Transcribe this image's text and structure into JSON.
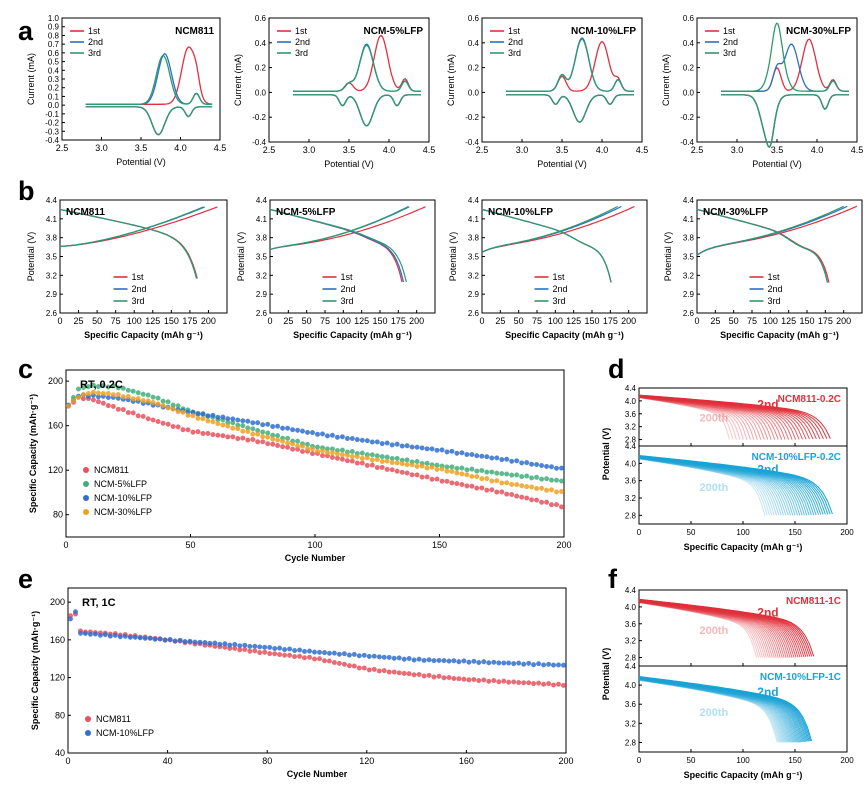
{
  "figure": {
    "panel_letters": [
      "a",
      "b",
      "c",
      "d",
      "e",
      "f"
    ],
    "colors": {
      "first": "#e0313f",
      "second": "#2a6fc9",
      "third": "#2e9a6e",
      "ncm811": "#e8505c",
      "ncm5": "#3fae7a",
      "ncm10": "#2f6fd0",
      "ncm30": "#f0a020",
      "d_red": "#e0303a",
      "d_blue": "#1aa3d6"
    }
  },
  "chart_data": [
    {
      "id": "a1",
      "type": "line",
      "title": "NCM811",
      "xlabel": "Potential (V)",
      "ylabel": "Current (mA)",
      "xlim": [
        2.5,
        4.5
      ],
      "ylim": [
        -0.4,
        1.0
      ],
      "xticks": [
        "2.5",
        "3.0",
        "3.5",
        "4.0",
        "4.5"
      ],
      "yticks": [
        "-0.4",
        "-0.3",
        "-0.2",
        "-0.1",
        "0.0",
        "0.1",
        "0.2",
        "0.3",
        "0.4",
        "0.5",
        "0.6",
        "0.7",
        "0.8",
        "0.9",
        "1.0"
      ],
      "legend": [
        "1st",
        "2nd",
        "3rd"
      ],
      "series": [
        {
          "name": "1st",
          "anodic_peak": [
            4.1,
            0.65
          ],
          "cathodic_peak": [
            3.72,
            -0.32
          ]
        },
        {
          "name": "2nd",
          "anodic_peak": [
            3.8,
            0.58
          ],
          "cathodic_peak": [
            3.72,
            -0.32
          ]
        },
        {
          "name": "3rd",
          "anodic_peak": [
            3.78,
            0.56
          ],
          "cathodic_peak": [
            3.72,
            -0.32
          ]
        }
      ]
    },
    {
      "id": "a2",
      "type": "line",
      "title": "NCM-5%LFP",
      "xlabel": "Potential (V)",
      "ylabel": "Current (mA)",
      "xlim": [
        2.5,
        4.5
      ],
      "ylim": [
        -0.4,
        0.6
      ],
      "xticks": [
        "2.5",
        "3.0",
        "3.5",
        "4.0",
        "4.5"
      ],
      "yticks": [
        "-0.4",
        "-0.2",
        "0.0",
        "0.2",
        "0.4",
        "0.6"
      ],
      "legend": [
        "1st",
        "2nd",
        "3rd"
      ],
      "series": [
        {
          "name": "1st",
          "anodic_peak": [
            3.9,
            0.45
          ],
          "cathodic_peak": [
            3.72,
            -0.25
          ]
        },
        {
          "name": "2nd",
          "anodic_peak": [
            3.72,
            0.38
          ],
          "cathodic_peak": [
            3.72,
            -0.25
          ]
        },
        {
          "name": "3rd",
          "anodic_peak": [
            3.72,
            0.37
          ],
          "cathodic_peak": [
            3.72,
            -0.25
          ]
        }
      ]
    },
    {
      "id": "a3",
      "type": "line",
      "title": "NCM-10%LFP",
      "xlabel": "Potential (V)",
      "ylabel": "Current (mA)",
      "xlim": [
        2.5,
        4.5
      ],
      "ylim": [
        -0.4,
        0.6
      ],
      "xticks": [
        "2.5",
        "3.0",
        "3.5",
        "4.0",
        "4.5"
      ],
      "yticks": [
        "-0.4",
        "-0.2",
        "0.0",
        "0.2",
        "0.4",
        "0.6"
      ],
      "legend": [
        "1st",
        "2nd",
        "3rd"
      ],
      "series": [
        {
          "name": "1st",
          "anodic_peak": [
            4.0,
            0.4
          ],
          "cathodic_peak": [
            3.72,
            -0.22
          ]
        },
        {
          "name": "2nd",
          "anodic_peak": [
            3.75,
            0.43
          ],
          "cathodic_peak": [
            3.72,
            -0.22
          ]
        },
        {
          "name": "3rd",
          "anodic_peak": [
            3.75,
            0.42
          ],
          "cathodic_peak": [
            3.72,
            -0.22
          ]
        }
      ]
    },
    {
      "id": "a4",
      "type": "line",
      "title": "NCM-30%LFP",
      "xlabel": "Potential (V)",
      "ylabel": "Current (mA)",
      "xlim": [
        2.5,
        4.5
      ],
      "ylim": [
        -0.4,
        0.6
      ],
      "xticks": [
        "2.5",
        "3.0",
        "3.5",
        "4.0",
        "4.5"
      ],
      "yticks": [
        "-0.4",
        "-0.2",
        "0.0",
        "0.2",
        "0.4",
        "0.6"
      ],
      "legend": [
        "1st",
        "2nd",
        "3rd"
      ],
      "series": [
        {
          "name": "1st",
          "anodic_peak": [
            3.9,
            0.42
          ],
          "cathodic_peak": [
            3.38,
            -0.33
          ]
        },
        {
          "name": "2nd",
          "anodic_peak": [
            3.68,
            0.38
          ],
          "cathodic_peak": [
            3.38,
            -0.33
          ]
        },
        {
          "name": "3rd",
          "anodic_peak": [
            3.5,
            0.38
          ],
          "cathodic_peak": [
            3.38,
            -0.33
          ]
        }
      ]
    },
    {
      "id": "b1",
      "type": "line",
      "title": "NCM811",
      "xlabel": "Specific Capacity (mAh g⁻¹)",
      "ylabel": "Potential (V)",
      "xlim": [
        0,
        225
      ],
      "ylim": [
        2.6,
        4.4
      ],
      "xticks": [
        "0",
        "25",
        "50",
        "75",
        "100",
        "125",
        "150",
        "175",
        "200"
      ],
      "yticks": [
        "2.6",
        "2.9",
        "3.2",
        "3.5",
        "3.8",
        "4.1",
        "4.4"
      ],
      "legend": [
        "1st",
        "2nd",
        "3rd"
      ],
      "series": [
        {
          "name": "1st",
          "charge_capacity": 212,
          "discharge_capacity": 185
        },
        {
          "name": "2nd",
          "charge_capacity": 195,
          "discharge_capacity": 184
        },
        {
          "name": "3rd",
          "charge_capacity": 193,
          "discharge_capacity": 184
        }
      ]
    },
    {
      "id": "b2",
      "type": "line",
      "title": "NCM-5%LFP",
      "xlabel": "Specific Capacity (mAh g⁻¹)",
      "ylabel": "Potential (V)",
      "xlim": [
        0,
        225
      ],
      "ylim": [
        2.6,
        4.4
      ],
      "xticks": [
        "0",
        "25",
        "50",
        "75",
        "100",
        "125",
        "150",
        "175",
        "200"
      ],
      "yticks": [
        "2.6",
        "2.9",
        "3.2",
        "3.5",
        "3.8",
        "4.1",
        "4.4"
      ],
      "legend": [
        "1st",
        "2nd",
        "3rd"
      ],
      "series": [
        {
          "name": "1st",
          "charge_capacity": 212,
          "discharge_capacity": 180
        },
        {
          "name": "2nd",
          "charge_capacity": 190,
          "discharge_capacity": 182
        },
        {
          "name": "3rd",
          "charge_capacity": 188,
          "discharge_capacity": 186
        }
      ]
    },
    {
      "id": "b3",
      "type": "line",
      "title": "NCM-10%LFP",
      "xlabel": "Specific Capacity (mAh g⁻¹)",
      "ylabel": "Potential (V)",
      "xlim": [
        0,
        225
      ],
      "ylim": [
        2.6,
        4.4
      ],
      "xticks": [
        "0",
        "25",
        "50",
        "75",
        "100",
        "125",
        "150",
        "175",
        "200"
      ],
      "yticks": [
        "2.6",
        "2.9",
        "3.2",
        "3.5",
        "3.8",
        "4.1",
        "4.4"
      ],
      "legend": [
        "1st",
        "2nd",
        "3rd"
      ],
      "series": [
        {
          "name": "1st",
          "charge_capacity": 208,
          "discharge_capacity": 176
        },
        {
          "name": "2nd",
          "charge_capacity": 190,
          "discharge_capacity": 176
        },
        {
          "name": "3rd",
          "charge_capacity": 185,
          "discharge_capacity": 176
        }
      ]
    },
    {
      "id": "b4",
      "type": "line",
      "title": "NCM-30%LFP",
      "xlabel": "Specific Capacity (mAh g⁻¹)",
      "ylabel": "Potential (V)",
      "xlim": [
        0,
        225
      ],
      "ylim": [
        2.6,
        4.4
      ],
      "xticks": [
        "0",
        "25",
        "50",
        "75",
        "100",
        "125",
        "150",
        "175",
        "200"
      ],
      "yticks": [
        "2.6",
        "2.9",
        "3.2",
        "3.5",
        "3.8",
        "4.1",
        "4.4"
      ],
      "legend": [
        "1st",
        "2nd",
        "3rd"
      ],
      "series": [
        {
          "name": "1st",
          "charge_capacity": 218,
          "discharge_capacity": 180
        },
        {
          "name": "2nd",
          "charge_capacity": 205,
          "discharge_capacity": 178
        },
        {
          "name": "3rd",
          "charge_capacity": 200,
          "discharge_capacity": 178
        }
      ]
    },
    {
      "id": "c",
      "type": "scatter",
      "title": "RT, 0.2C",
      "xlabel": "Cycle Number",
      "ylabel": "Specific Capacity (mAh·g⁻¹)",
      "xlim": [
        0,
        200
      ],
      "ylim": [
        60,
        210
      ],
      "xticks": [
        "0",
        "50",
        "100",
        "150",
        "200"
      ],
      "yticks": [
        "80",
        "120",
        "160",
        "200"
      ],
      "series": [
        {
          "name": "NCM811",
          "x": [
            1,
            5,
            10,
            20,
            35,
            50,
            75,
            100,
            125,
            150,
            175,
            200
          ],
          "values": [
            178,
            185,
            184,
            176,
            165,
            155,
            147,
            135,
            123,
            111,
            100,
            87
          ]
        },
        {
          "name": "NCM-5%LFP",
          "x": [
            1,
            5,
            10,
            20,
            35,
            50,
            75,
            100,
            125,
            150,
            175,
            200
          ],
          "values": [
            178,
            193,
            196,
            195,
            186,
            173,
            157,
            141,
            133,
            124,
            117,
            110
          ]
        },
        {
          "name": "NCM-10%LFP",
          "x": [
            1,
            5,
            10,
            20,
            35,
            50,
            75,
            100,
            125,
            150,
            175,
            200
          ],
          "values": [
            178,
            187,
            187,
            185,
            179,
            172,
            163,
            153,
            145,
            138,
            130,
            121
          ]
        },
        {
          "name": "NCM-30%LFP",
          "x": [
            1,
            5,
            10,
            20,
            35,
            50,
            75,
            100,
            125,
            150,
            175,
            200
          ],
          "values": [
            178,
            186,
            190,
            188,
            181,
            169,
            153,
            138,
            129,
            121,
            109,
            100
          ]
        }
      ]
    },
    {
      "id": "d",
      "type": "line",
      "xlabel": "Specific Capacity (mAh g⁻¹)",
      "ylabel": "Potential (V)",
      "xlim": [
        0,
        200
      ],
      "xticks": [
        "0",
        "50",
        "100",
        "150",
        "200"
      ],
      "subplots": [
        {
          "title": "NCM811-0.2C",
          "ylim": [
            2.6,
            4.4
          ],
          "yticks": [
            "2.8",
            "3.2",
            "3.6",
            "4.0",
            "4.4"
          ],
          "curve_labels": [
            "2nd",
            "200th"
          ],
          "capacity_range": [
            87,
            184
          ]
        },
        {
          "title": "NCM-10%LFP-0.2C",
          "ylim": [
            2.6,
            4.4
          ],
          "yticks": [
            "2.8",
            "3.2",
            "3.6",
            "4.0",
            "4.4"
          ],
          "curve_labels": [
            "2nd",
            "200th"
          ],
          "capacity_range": [
            121,
            186
          ]
        }
      ]
    },
    {
      "id": "e",
      "type": "scatter",
      "title": "RT, 1C",
      "xlabel": "Cycle Number",
      "ylabel": "Specific Capacity (mAh·g⁻¹)",
      "xlim": [
        0,
        200
      ],
      "ylim": [
        40,
        215
      ],
      "xticks": [
        "0",
        "40",
        "80",
        "120",
        "160",
        "200"
      ],
      "yticks": [
        "40",
        "80",
        "120",
        "160",
        "200"
      ],
      "series": [
        {
          "name": "NCM811",
          "x": [
            1,
            3,
            5,
            20,
            40,
            60,
            80,
            100,
            120,
            140,
            160,
            180,
            200
          ],
          "values": [
            185,
            188,
            169,
            166,
            160,
            153,
            146,
            140,
            129,
            123,
            118,
            115,
            112
          ]
        },
        {
          "name": "NCM-10%LFP",
          "x": [
            1,
            3,
            5,
            20,
            40,
            60,
            80,
            100,
            120,
            140,
            160,
            180,
            200
          ],
          "values": [
            182,
            190,
            167,
            164,
            160,
            156,
            152,
            147,
            143,
            139,
            137,
            135,
            133
          ]
        }
      ]
    },
    {
      "id": "f",
      "type": "line",
      "xlabel": "Specific Capacity (mAh g⁻¹)",
      "ylabel": "Potential (V)",
      "xlim": [
        0,
        200
      ],
      "xticks": [
        "0",
        "50",
        "100",
        "150",
        "200"
      ],
      "subplots": [
        {
          "title": "NCM811-1C",
          "ylim": [
            2.6,
            4.4
          ],
          "yticks": [
            "2.8",
            "3.2",
            "3.6",
            "4.0",
            "4.4"
          ],
          "curve_labels": [
            "2nd",
            "200th"
          ],
          "capacity_range": [
            113,
            168
          ]
        },
        {
          "title": "NCM-10%LFP-1C",
          "ylim": [
            2.6,
            4.4
          ],
          "yticks": [
            "2.8",
            "3.2",
            "3.6",
            "4.0",
            "4.4"
          ],
          "curve_labels": [
            "2nd",
            "200th"
          ],
          "capacity_range": [
            133,
            166
          ]
        }
      ]
    }
  ]
}
